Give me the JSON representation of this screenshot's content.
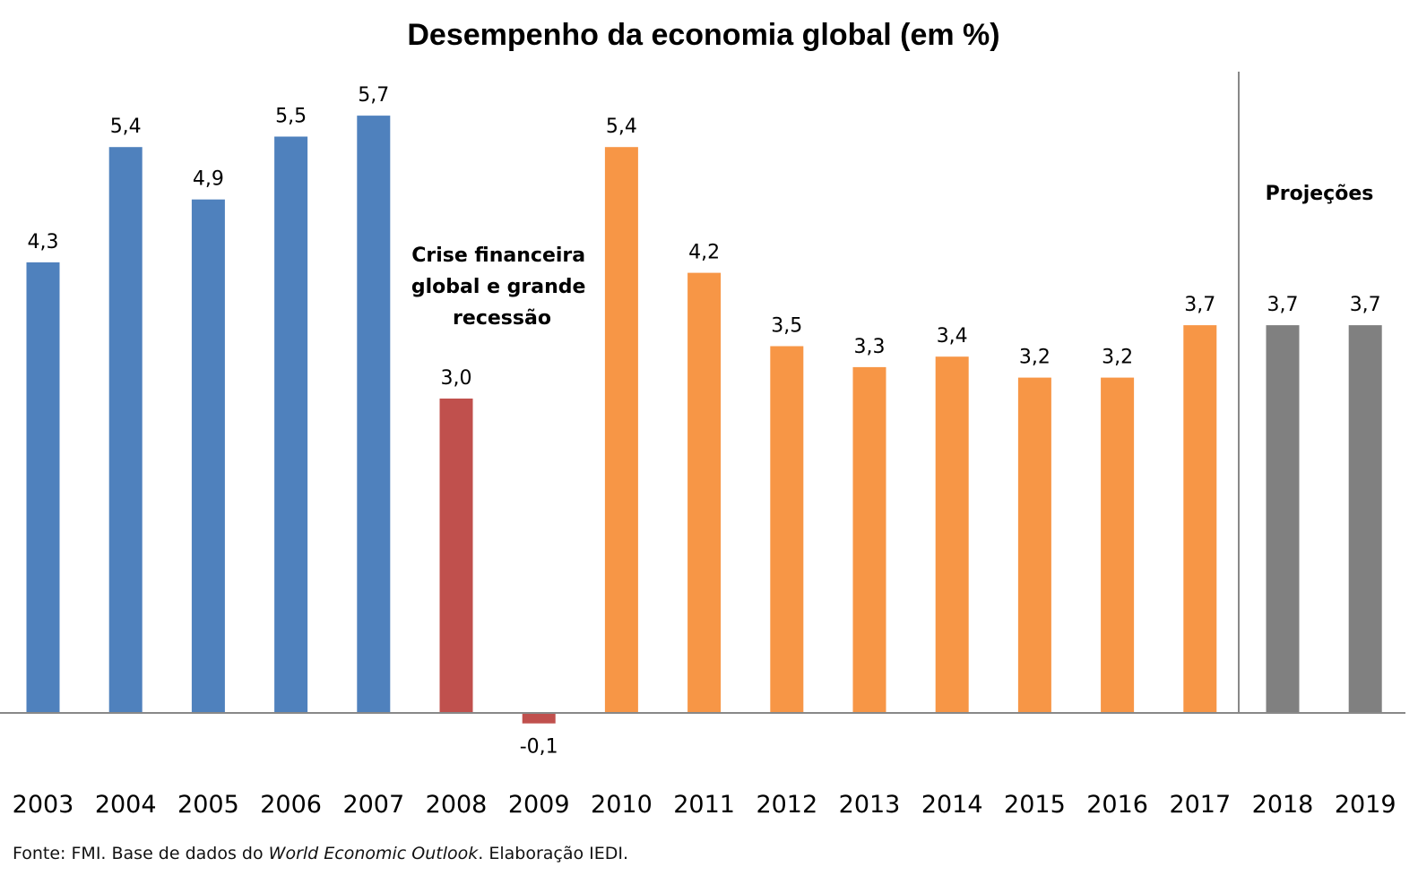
{
  "chart_data": {
    "type": "bar",
    "title": "Desempenho da economia global (em %)",
    "xlabel": "",
    "ylabel": "",
    "ylim": [
      -0.3,
      6.1
    ],
    "grid": false,
    "legend": "none",
    "categories": [
      "2003",
      "2004",
      "2005",
      "2006",
      "2007",
      "2008",
      "2009",
      "2010",
      "2011",
      "2012",
      "2013",
      "2014",
      "2015",
      "2016",
      "2017",
      "2018",
      "2019"
    ],
    "values": [
      4.3,
      5.4,
      4.9,
      5.5,
      5.7,
      3.0,
      -0.1,
      5.4,
      4.2,
      3.5,
      3.3,
      3.4,
      3.2,
      3.2,
      3.7,
      3.7,
      3.7
    ],
    "labels": [
      "4,3",
      "5,4",
      "4,9",
      "5,5",
      "5,7",
      "3,0",
      "-0,1",
      "5,4",
      "4,2",
      "3,5",
      "3,3",
      "3,4",
      "3,2",
      "3,2",
      "3,7",
      "3,7",
      "3,7"
    ],
    "bar_colors": [
      "#4f81bd",
      "#4f81bd",
      "#4f81bd",
      "#4f81bd",
      "#4f81bd",
      "#c0504d",
      "#c0504d",
      "#f79646",
      "#f79646",
      "#f79646",
      "#f79646",
      "#f79646",
      "#f79646",
      "#f79646",
      "#f79646",
      "#808080",
      "#808080"
    ],
    "annotations": [
      {
        "lines": [
          "Crise financeira",
          "global e grande",
          "recessão"
        ]
      },
      {
        "lines": [
          "Projeções"
        ]
      }
    ]
  },
  "footer": {
    "prefix": "Fonte: FMI. Base de dados do ",
    "italic": "World Economic Outlook",
    "suffix": ". Elaboração IEDI."
  }
}
